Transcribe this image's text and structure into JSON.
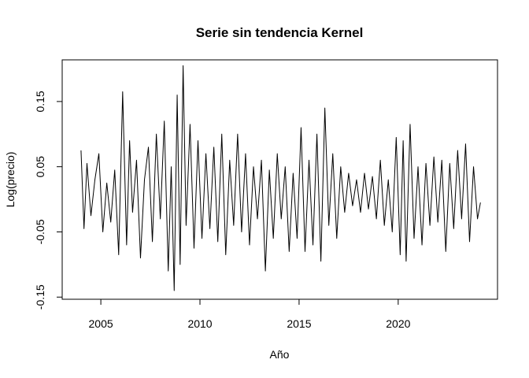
{
  "chart_data": {
    "type": "line",
    "title": "Serie sin tendencia Kernel",
    "xlabel": "Año",
    "ylabel": "Log(precio)",
    "x_ticks": [
      "2005",
      "2010",
      "2015",
      "2020"
    ],
    "y_ticks": [
      "-0.15",
      "-0.05",
      "0.05",
      "0.15"
    ],
    "xlim": [
      2003.05,
      2025.01
    ],
    "ylim": [
      -0.1533,
      0.2139
    ],
    "grid": false,
    "series": [
      {
        "color": "#000000",
        "x": [
          2004.0,
          2004.15,
          2004.3,
          2004.5,
          2004.7,
          2004.9,
          2005.1,
          2005.3,
          2005.5,
          2005.7,
          2005.9,
          2006.1,
          2006.3,
          2006.45,
          2006.6,
          2006.8,
          2007.0,
          2007.2,
          2007.4,
          2007.6,
          2007.8,
          2008.0,
          2008.2,
          2008.4,
          2008.55,
          2008.7,
          2008.85,
          2009.0,
          2009.15,
          2009.3,
          2009.5,
          2009.7,
          2009.9,
          2010.1,
          2010.3,
          2010.5,
          2010.7,
          2010.9,
          2011.1,
          2011.3,
          2011.5,
          2011.7,
          2011.9,
          2012.1,
          2012.3,
          2012.5,
          2012.7,
          2012.9,
          2013.1,
          2013.3,
          2013.5,
          2013.7,
          2013.9,
          2014.1,
          2014.3,
          2014.5,
          2014.7,
          2014.9,
          2015.1,
          2015.3,
          2015.5,
          2015.7,
          2015.9,
          2016.1,
          2016.3,
          2016.5,
          2016.7,
          2016.9,
          2017.1,
          2017.3,
          2017.5,
          2017.7,
          2017.9,
          2018.1,
          2018.3,
          2018.5,
          2018.7,
          2018.9,
          2019.1,
          2019.3,
          2019.5,
          2019.7,
          2019.9,
          2020.1,
          2020.25,
          2020.4,
          2020.6,
          2020.8,
          2021.0,
          2021.2,
          2021.4,
          2021.6,
          2021.8,
          2022.0,
          2022.2,
          2022.4,
          2022.6,
          2022.8,
          2023.0,
          2023.2,
          2023.4,
          2023.6,
          2023.8,
          2024.0,
          2024.15
        ],
        "y": [
          0.075,
          -0.045,
          0.055,
          -0.025,
          0.03,
          0.07,
          -0.05,
          0.025,
          -0.035,
          0.045,
          -0.085,
          0.165,
          -0.07,
          0.09,
          -0.02,
          0.06,
          -0.09,
          0.03,
          0.08,
          -0.065,
          0.1,
          -0.03,
          0.12,
          -0.11,
          0.05,
          -0.14,
          0.16,
          -0.1,
          0.205,
          -0.04,
          0.115,
          -0.075,
          0.09,
          -0.06,
          0.07,
          -0.045,
          0.08,
          -0.065,
          0.1,
          -0.085,
          0.06,
          -0.04,
          0.1,
          -0.05,
          0.07,
          -0.07,
          0.05,
          -0.03,
          0.06,
          -0.11,
          0.045,
          -0.06,
          0.07,
          -0.03,
          0.05,
          -0.08,
          0.04,
          -0.06,
          0.11,
          -0.08,
          0.06,
          -0.07,
          0.1,
          -0.095,
          0.14,
          -0.04,
          0.07,
          -0.06,
          0.05,
          -0.02,
          0.04,
          -0.01,
          0.03,
          -0.02,
          0.04,
          -0.015,
          0.035,
          -0.03,
          0.06,
          -0.04,
          0.03,
          -0.05,
          0.095,
          -0.085,
          0.09,
          -0.095,
          0.115,
          -0.06,
          0.05,
          -0.07,
          0.055,
          -0.04,
          0.065,
          -0.035,
          0.06,
          -0.08,
          0.055,
          -0.045,
          0.075,
          -0.03,
          0.085,
          -0.065,
          0.05,
          -0.03,
          -0.005
        ]
      }
    ]
  }
}
